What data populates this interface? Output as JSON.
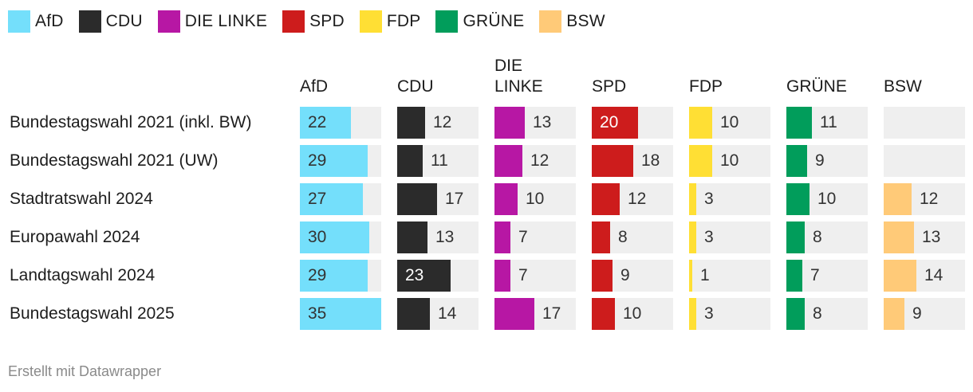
{
  "chart_data": {
    "type": "table",
    "columns": [
      {
        "key": "afd",
        "label": "AfD",
        "color": "#74dffb"
      },
      {
        "key": "cdu",
        "label": "CDU",
        "color": "#2b2b2b"
      },
      {
        "key": "linke",
        "label": "DIE LINKE",
        "color": "#b717a4"
      },
      {
        "key": "spd",
        "label": "SPD",
        "color": "#cd1c1c"
      },
      {
        "key": "fdp",
        "label": "FDP",
        "color": "#ffdf34"
      },
      {
        "key": "gruene",
        "label": "GRÜNE",
        "color": "#019d5b"
      },
      {
        "key": "bsw",
        "label": "BSW",
        "color": "#ffca78"
      }
    ],
    "rows": [
      {
        "label": "Bundestagswahl 2021 (inkl. BW)",
        "values": [
          22,
          12,
          13,
          20,
          10,
          11,
          null
        ]
      },
      {
        "label": "Bundestagswahl 2021 (UW)",
        "values": [
          29,
          11,
          12,
          18,
          10,
          9,
          null
        ]
      },
      {
        "label": "Stadtratswahl 2024",
        "values": [
          27,
          17,
          10,
          12,
          3,
          10,
          12
        ]
      },
      {
        "label": "Europawahl 2024",
        "values": [
          30,
          13,
          7,
          8,
          3,
          8,
          13
        ]
      },
      {
        "label": "Landtagswahl 2024",
        "values": [
          29,
          23,
          7,
          9,
          1,
          7,
          14
        ]
      },
      {
        "label": "Bundestagswahl 2025",
        "values": [
          35,
          14,
          17,
          10,
          3,
          8,
          9
        ]
      }
    ],
    "scale_max": 35
  },
  "footer": "Erstellt mit Datawrapper"
}
